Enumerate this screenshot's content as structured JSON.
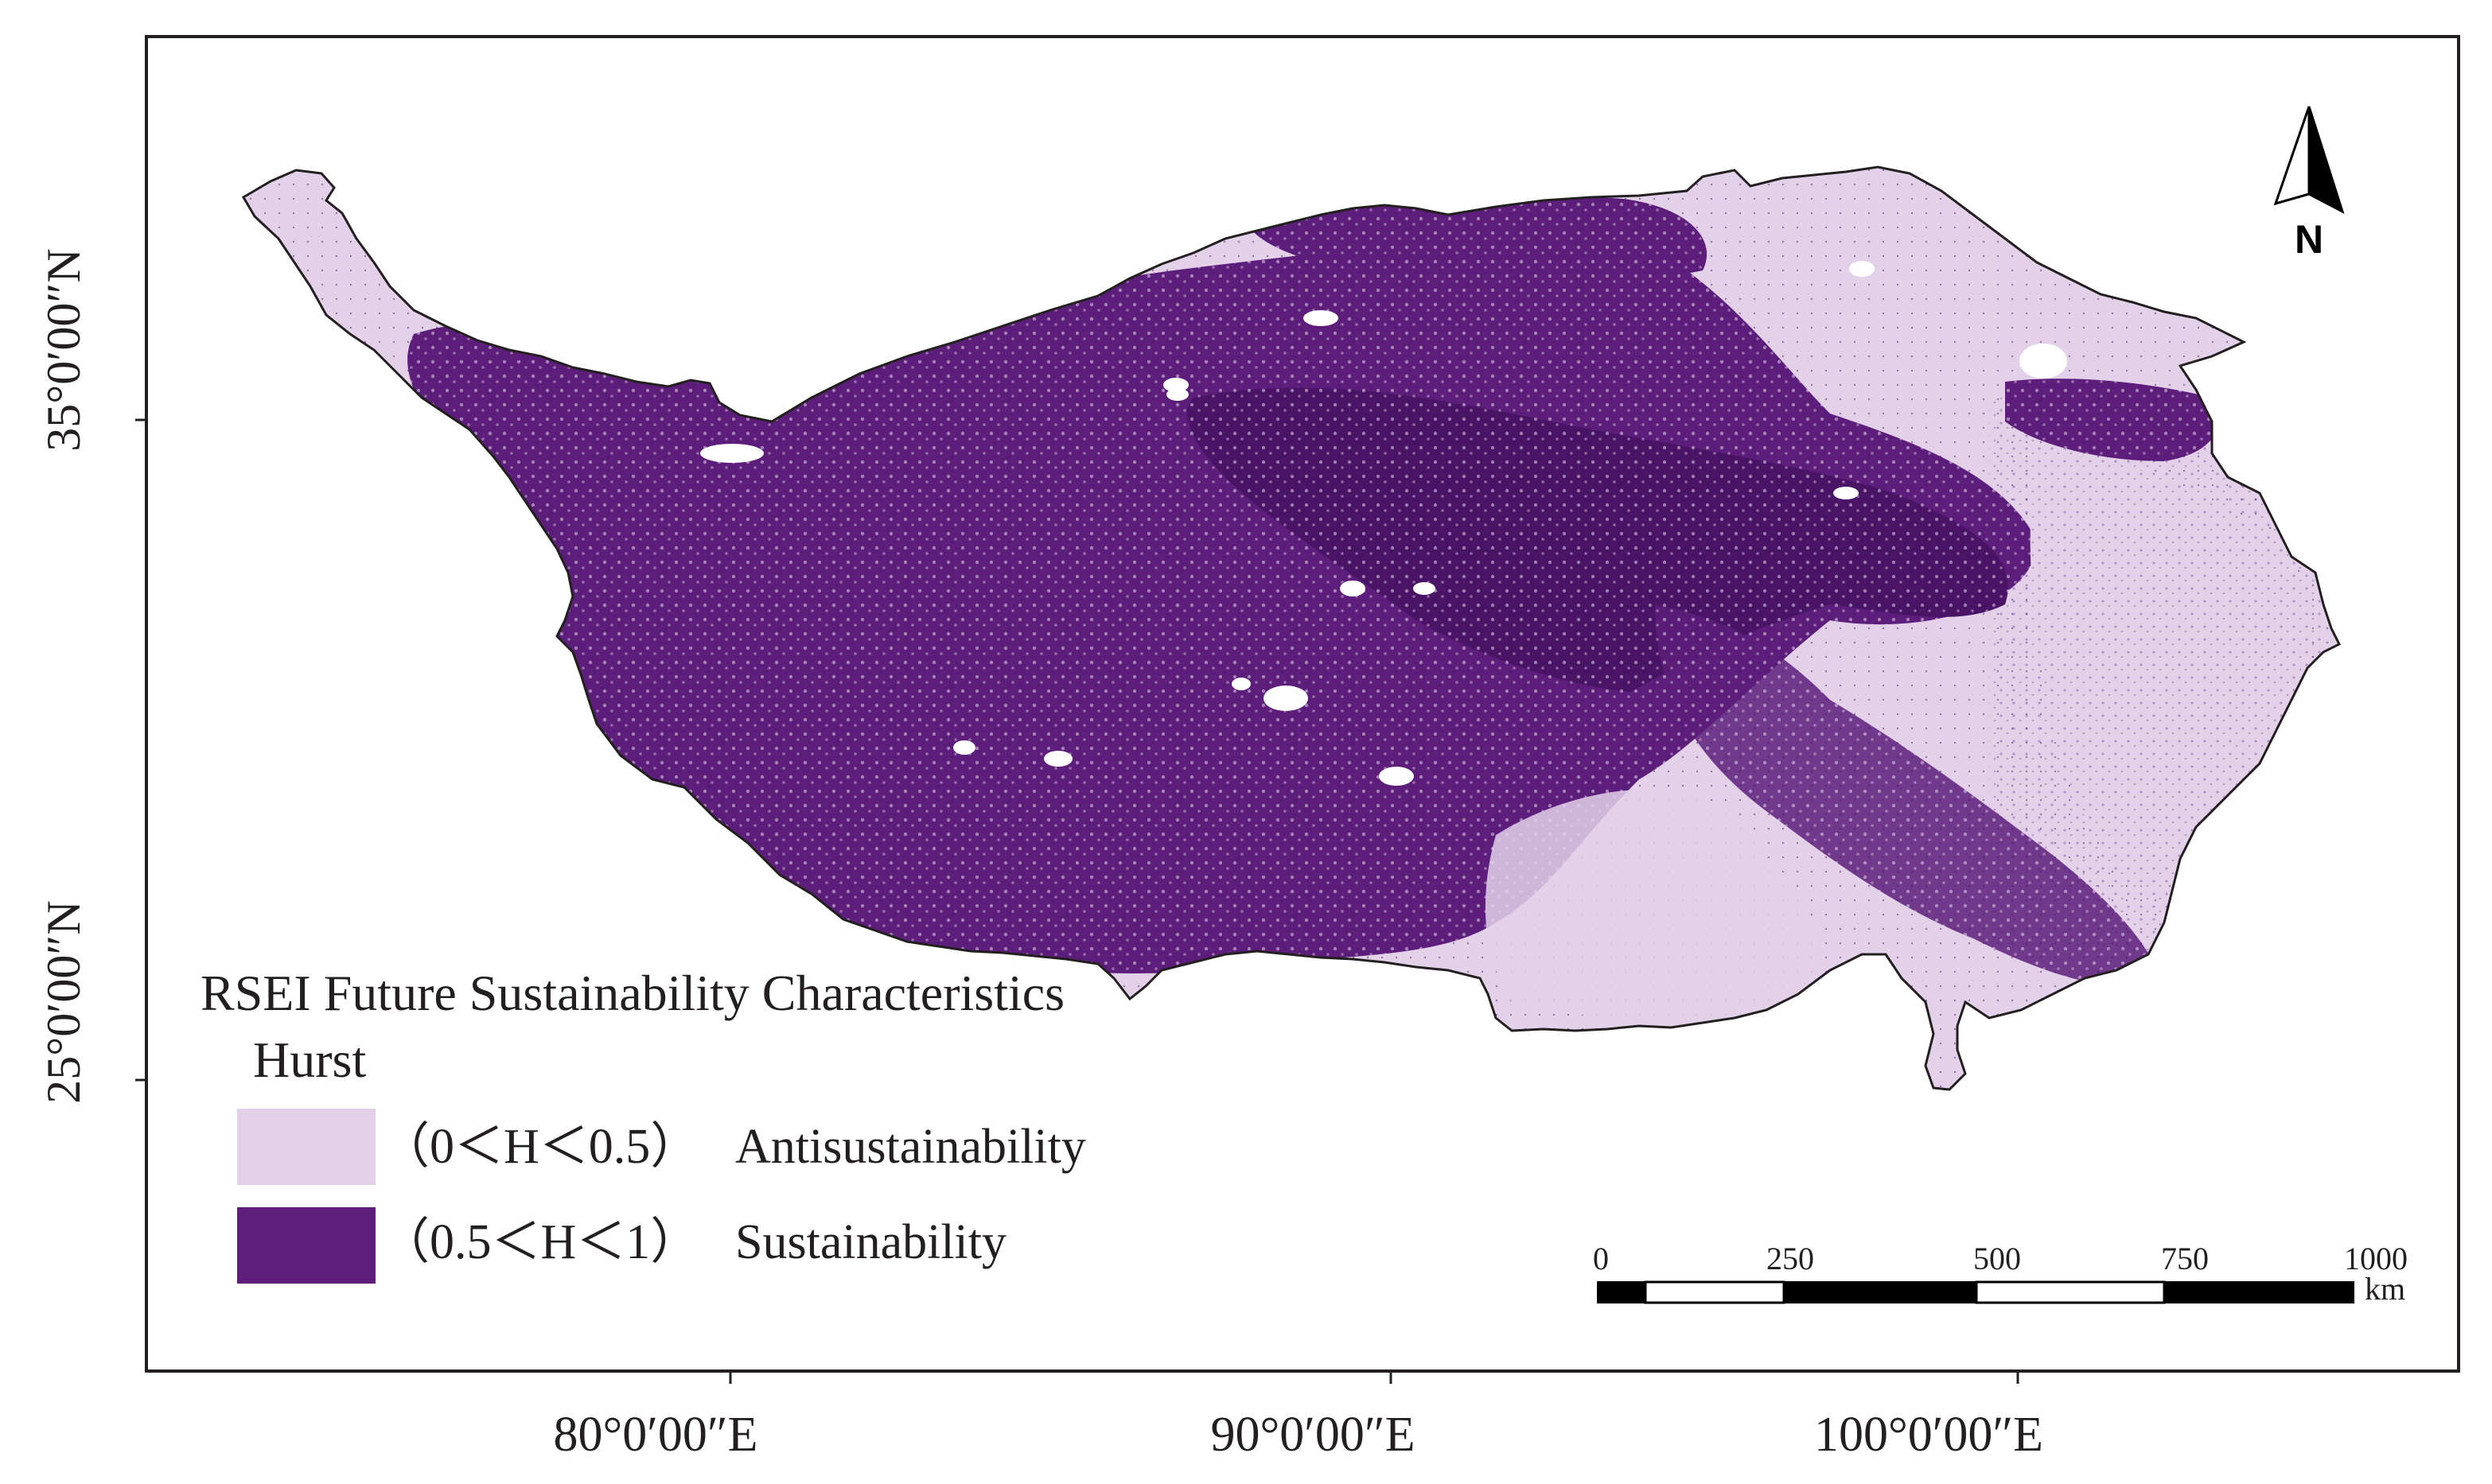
{
  "map": {
    "axes": {
      "lat_labels": [
        "35°0′00″N",
        "25°0′00″N"
      ],
      "lon_labels": [
        "80°0′00″E",
        "90°0′00″E",
        "100°0′00″E"
      ]
    },
    "north_arrow": {
      "label": "N"
    },
    "scale_bar": {
      "ticks": [
        "0",
        "250",
        "500",
        "750",
        "1000"
      ],
      "unit": "km"
    },
    "colors": {
      "antisustainability": "#e3d1ea",
      "sustainability": "#5c1e7a",
      "sustainability_dark": "#4a1466",
      "frame": "#231f20",
      "water_gaps": "#ffffff"
    }
  },
  "legend": {
    "title": "RSEI Future Sustainability Characteristics",
    "subtitle": "Hurst",
    "items": [
      {
        "range": "（0＜H＜0.5）",
        "label": "Antisustainability",
        "color": "#e3d1ea"
      },
      {
        "range": "（0.5＜H＜1）",
        "label": "Sustainability",
        "color": "#5c1e7a"
      }
    ]
  }
}
